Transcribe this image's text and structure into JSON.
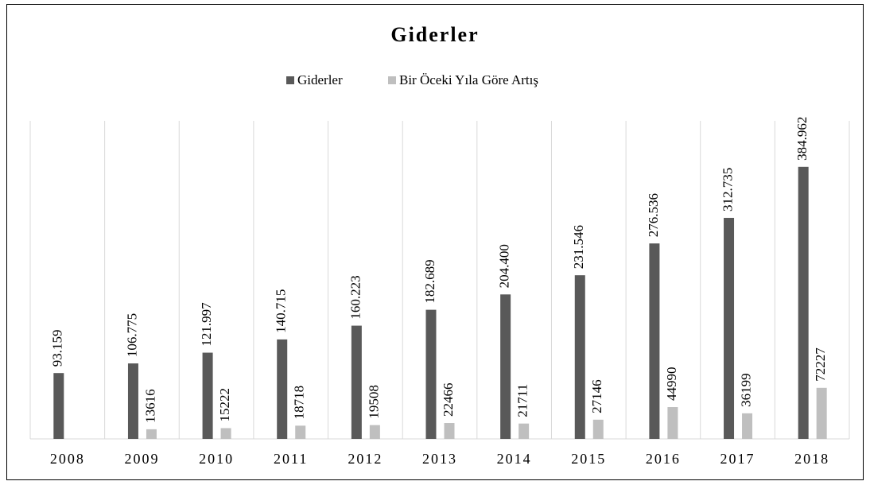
{
  "chart_data": {
    "type": "bar",
    "title": "Giderler",
    "categories": [
      "2008",
      "2009",
      "2010",
      "2011",
      "2012",
      "2013",
      "2014",
      "2015",
      "2016",
      "2017",
      "2018"
    ],
    "series": [
      {
        "name": "Giderler",
        "color": "#595959",
        "values": [
          93159,
          106775,
          121997,
          140715,
          160223,
          182689,
          204400,
          231546,
          276536,
          312735,
          384962
        ],
        "value_labels": [
          "93.159",
          "106.775",
          "121.997",
          "140.715",
          "160.223",
          "182.689",
          "204.400",
          "231.546",
          "276.536",
          "312.735",
          "384.962"
        ]
      },
      {
        "name": "Bir Öceki Yıla Göre Artış",
        "color": "#bfbfbf",
        "values": [
          null,
          13616,
          15222,
          18718,
          19508,
          22466,
          21711,
          27146,
          44990,
          36199,
          72227
        ]
      }
    ],
    "ylim": [
      0,
      450000
    ],
    "grid": true,
    "legend": "top"
  }
}
